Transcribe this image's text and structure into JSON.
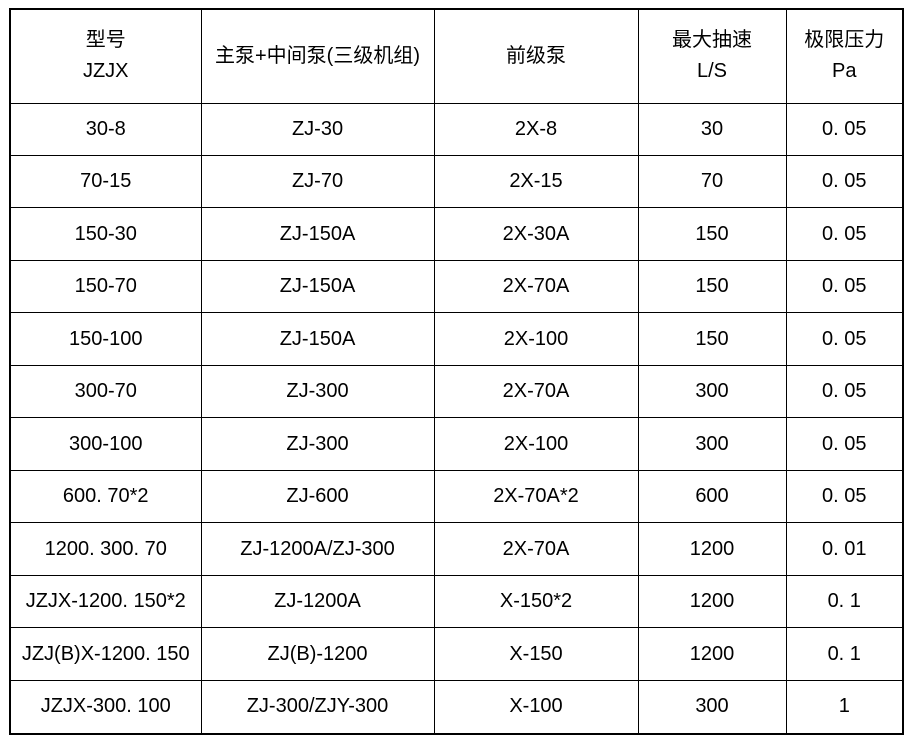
{
  "table": {
    "background": "#ffffff",
    "border_color": "#000000",
    "text_color": "#000000",
    "headers": [
      {
        "line1": "型号",
        "line2": "JZJX"
      },
      {
        "line1": "主泵+中间泵(三级机组)",
        "line2": ""
      },
      {
        "line1": "前级泵",
        "line2": ""
      },
      {
        "line1": "最大抽速",
        "line2": "L/S"
      },
      {
        "line1": "极限压力",
        "line2": "Pa"
      }
    ],
    "columns_semantic": [
      "model",
      "main-plus-intermediate-pump",
      "backing-pump",
      "max-pumping-speed-l-per-s",
      "ultimate-pressure-pa"
    ],
    "rows": [
      [
        "30-8",
        "ZJ-30",
        "2X-8",
        "30",
        "0. 05"
      ],
      [
        "70-15",
        "ZJ-70",
        "2X-15",
        "70",
        "0. 05"
      ],
      [
        "150-30",
        "ZJ-150A",
        "2X-30A",
        "150",
        "0. 05"
      ],
      [
        "150-70",
        "ZJ-150A",
        "2X-70A",
        "150",
        "0. 05"
      ],
      [
        "150-100",
        "ZJ-150A",
        "2X-100",
        "150",
        "0. 05"
      ],
      [
        "300-70",
        "ZJ-300",
        "2X-70A",
        "300",
        "0. 05"
      ],
      [
        "300-100",
        "ZJ-300",
        "2X-100",
        "300",
        "0. 05"
      ],
      [
        "600. 70*2",
        "ZJ-600",
        "2X-70A*2",
        "600",
        "0. 05"
      ],
      [
        "1200. 300. 70",
        "ZJ-1200A/ZJ-300",
        "2X-70A",
        "1200",
        "0. 01"
      ],
      [
        "JZJX-1200. 150*2",
        "ZJ-1200A",
        "X-150*2",
        "1200",
        "0. 1"
      ],
      [
        "JZJ(B)X-1200. 150",
        "ZJ(B)-1200",
        "X-150",
        "1200",
        "0. 1"
      ],
      [
        "JZJX-300. 100",
        "ZJ-300/ZJY-300",
        "X-100",
        "300",
        "1"
      ]
    ]
  }
}
